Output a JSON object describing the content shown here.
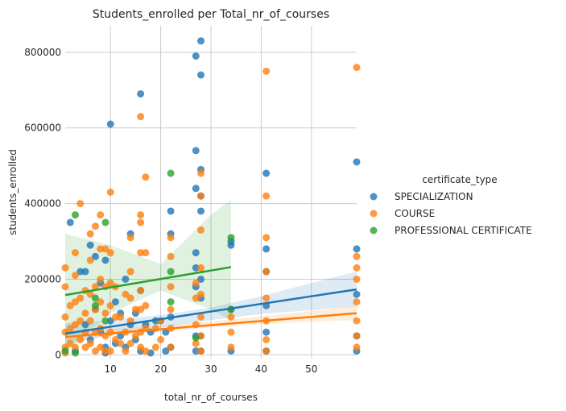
{
  "chart_data": {
    "type": "scatter",
    "title": "Students_enrolled per Total_nr_of_courses",
    "xlabel": "total_nr_of_courses",
    "ylabel": "students_enrolled",
    "xlim": [
      1,
      59
    ],
    "ylim": [
      -10000,
      870000
    ],
    "x_ticks": [
      10,
      20,
      30,
      40,
      50
    ],
    "x_tick_labels": [
      "10",
      "20",
      "30",
      "40",
      "50"
    ],
    "y_ticks": [
      0,
      200000,
      400000,
      600000,
      800000
    ],
    "y_tick_labels": [
      "0",
      "200000",
      "400000",
      "600000",
      "800000"
    ],
    "grid": true,
    "legend": {
      "title": "certificate_type",
      "placement": "right",
      "entries": [
        "SPECIALIZATION",
        "COURSE",
        "PROFESSIONAL CERTIFICATE"
      ]
    },
    "series": [
      {
        "name": "SPECIALIZATION",
        "color": "#1f77b4",
        "fit_line": {
          "x": [
            1,
            59
          ],
          "y": [
            56000,
            173000
          ]
        },
        "ci_band": {
          "x": [
            1,
            10,
            20,
            30,
            40,
            50,
            59
          ],
          "lower": [
            28000,
            52000,
            72000,
            92000,
            108000,
            118000,
            128000
          ],
          "upper": [
            84000,
            92000,
            105000,
            125000,
            155000,
            190000,
            220000
          ]
        },
        "points": [
          [
            2,
            350000
          ],
          [
            3,
            10000
          ],
          [
            4,
            220000
          ],
          [
            5,
            220000
          ],
          [
            5,
            80000
          ],
          [
            6,
            290000
          ],
          [
            6,
            40000
          ],
          [
            7,
            260000
          ],
          [
            7,
            120000
          ],
          [
            8,
            190000
          ],
          [
            8,
            60000
          ],
          [
            9,
            250000
          ],
          [
            9,
            20000
          ],
          [
            9,
            5000
          ],
          [
            10,
            610000
          ],
          [
            10,
            90000
          ],
          [
            11,
            140000
          ],
          [
            11,
            30000
          ],
          [
            12,
            110000
          ],
          [
            12,
            50000
          ],
          [
            13,
            200000
          ],
          [
            13,
            20000
          ],
          [
            14,
            320000
          ],
          [
            14,
            80000
          ],
          [
            15,
            110000
          ],
          [
            15,
            40000
          ],
          [
            16,
            690000
          ],
          [
            16,
            170000
          ],
          [
            16,
            10000
          ],
          [
            17,
            80000
          ],
          [
            18,
            60000
          ],
          [
            18,
            5000
          ],
          [
            19,
            90000
          ],
          [
            20,
            90000
          ],
          [
            21,
            60000
          ],
          [
            21,
            10000
          ],
          [
            22,
            380000
          ],
          [
            22,
            320000
          ],
          [
            22,
            100000
          ],
          [
            22,
            20000
          ],
          [
            27,
            790000
          ],
          [
            27,
            540000
          ],
          [
            27,
            440000
          ],
          [
            27,
            270000
          ],
          [
            27,
            230000
          ],
          [
            27,
            180000
          ],
          [
            27,
            50000
          ],
          [
            27,
            10000
          ],
          [
            28,
            830000
          ],
          [
            28,
            740000
          ],
          [
            28,
            490000
          ],
          [
            28,
            420000
          ],
          [
            28,
            380000
          ],
          [
            28,
            200000
          ],
          [
            28,
            150000
          ],
          [
            28,
            50000
          ],
          [
            28,
            10000
          ],
          [
            34,
            300000
          ],
          [
            34,
            290000
          ],
          [
            34,
            120000
          ],
          [
            34,
            10000
          ],
          [
            41,
            480000
          ],
          [
            41,
            280000
          ],
          [
            41,
            220000
          ],
          [
            41,
            130000
          ],
          [
            41,
            60000
          ],
          [
            41,
            10000
          ],
          [
            59,
            510000
          ],
          [
            59,
            280000
          ],
          [
            59,
            160000
          ],
          [
            59,
            50000
          ],
          [
            59,
            10000
          ]
        ]
      },
      {
        "name": "COURSE",
        "color": "#ff7f0e",
        "fit_line": {
          "x": [
            1,
            59
          ],
          "y": [
            47000,
            110000
          ]
        },
        "ci_band": {
          "x": [
            1,
            10,
            20,
            30,
            40,
            50,
            59
          ],
          "lower": [
            34000,
            50000,
            62000,
            72000,
            82000,
            88000,
            92000
          ],
          "upper": [
            62000,
            70000,
            78000,
            88000,
            102000,
            115000,
            130000
          ]
        },
        "points": [
          [
            1,
            230000
          ],
          [
            1,
            180000
          ],
          [
            1,
            100000
          ],
          [
            1,
            60000
          ],
          [
            1,
            20000
          ],
          [
            1,
            5000
          ],
          [
            2,
            130000
          ],
          [
            2,
            70000
          ],
          [
            2,
            30000
          ],
          [
            3,
            270000
          ],
          [
            3,
            210000
          ],
          [
            3,
            140000
          ],
          [
            3,
            80000
          ],
          [
            3,
            20000
          ],
          [
            4,
            400000
          ],
          [
            4,
            150000
          ],
          [
            4,
            90000
          ],
          [
            4,
            40000
          ],
          [
            5,
            170000
          ],
          [
            5,
            110000
          ],
          [
            5,
            60000
          ],
          [
            5,
            20000
          ],
          [
            6,
            320000
          ],
          [
            6,
            250000
          ],
          [
            6,
            160000
          ],
          [
            6,
            90000
          ],
          [
            6,
            30000
          ],
          [
            7,
            340000
          ],
          [
            7,
            180000
          ],
          [
            7,
            120000
          ],
          [
            7,
            60000
          ],
          [
            7,
            10000
          ],
          [
            8,
            370000
          ],
          [
            8,
            280000
          ],
          [
            8,
            200000
          ],
          [
            8,
            140000
          ],
          [
            8,
            70000
          ],
          [
            8,
            20000
          ],
          [
            9,
            280000
          ],
          [
            9,
            180000
          ],
          [
            9,
            110000
          ],
          [
            9,
            50000
          ],
          [
            9,
            10000
          ],
          [
            10,
            430000
          ],
          [
            10,
            270000
          ],
          [
            10,
            190000
          ],
          [
            10,
            130000
          ],
          [
            10,
            60000
          ],
          [
            10,
            10000
          ],
          [
            11,
            180000
          ],
          [
            11,
            100000
          ],
          [
            11,
            40000
          ],
          [
            12,
            100000
          ],
          [
            12,
            30000
          ],
          [
            13,
            160000
          ],
          [
            13,
            60000
          ],
          [
            13,
            10000
          ],
          [
            14,
            310000
          ],
          [
            14,
            220000
          ],
          [
            14,
            150000
          ],
          [
            14,
            90000
          ],
          [
            14,
            30000
          ],
          [
            15,
            120000
          ],
          [
            15,
            50000
          ],
          [
            16,
            630000
          ],
          [
            16,
            370000
          ],
          [
            16,
            350000
          ],
          [
            16,
            270000
          ],
          [
            16,
            170000
          ],
          [
            16,
            120000
          ],
          [
            16,
            60000
          ],
          [
            16,
            20000
          ],
          [
            17,
            470000
          ],
          [
            17,
            270000
          ],
          [
            17,
            130000
          ],
          [
            17,
            70000
          ],
          [
            17,
            10000
          ],
          [
            19,
            70000
          ],
          [
            19,
            20000
          ],
          [
            20,
            90000
          ],
          [
            20,
            40000
          ],
          [
            22,
            310000
          ],
          [
            22,
            260000
          ],
          [
            22,
            180000
          ],
          [
            22,
            120000
          ],
          [
            22,
            70000
          ],
          [
            22,
            20000
          ],
          [
            27,
            190000
          ],
          [
            27,
            150000
          ],
          [
            27,
            80000
          ],
          [
            27,
            30000
          ],
          [
            28,
            480000
          ],
          [
            28,
            420000
          ],
          [
            28,
            330000
          ],
          [
            28,
            230000
          ],
          [
            28,
            160000
          ],
          [
            28,
            100000
          ],
          [
            28,
            50000
          ],
          [
            28,
            10000
          ],
          [
            34,
            100000
          ],
          [
            34,
            60000
          ],
          [
            34,
            20000
          ],
          [
            41,
            750000
          ],
          [
            41,
            420000
          ],
          [
            41,
            310000
          ],
          [
            41,
            220000
          ],
          [
            41,
            150000
          ],
          [
            41,
            90000
          ],
          [
            41,
            40000
          ],
          [
            41,
            10000
          ],
          [
            59,
            760000
          ],
          [
            59,
            260000
          ],
          [
            59,
            230000
          ],
          [
            59,
            200000
          ],
          [
            59,
            140000
          ],
          [
            59,
            90000
          ],
          [
            59,
            50000
          ],
          [
            59,
            20000
          ]
        ]
      },
      {
        "name": "PROFESSIONAL CERTIFICATE",
        "color": "#2ca02c",
        "fit_line": {
          "x": [
            1,
            34
          ],
          "y": [
            158000,
            232000
          ]
        },
        "ci_band": {
          "x": [
            1,
            10,
            20,
            30,
            34
          ],
          "lower": [
            5000,
            110000,
            170000,
            120000,
            90000
          ],
          "upper": [
            320000,
            290000,
            240000,
            370000,
            410000
          ]
        },
        "points": [
          [
            1,
            10000
          ],
          [
            3,
            370000
          ],
          [
            3,
            5000
          ],
          [
            7,
            150000
          ],
          [
            7,
            130000
          ],
          [
            9,
            350000
          ],
          [
            9,
            90000
          ],
          [
            22,
            480000
          ],
          [
            22,
            220000
          ],
          [
            22,
            140000
          ],
          [
            27,
            45000
          ],
          [
            34,
            310000
          ],
          [
            34,
            120000
          ]
        ]
      }
    ]
  }
}
